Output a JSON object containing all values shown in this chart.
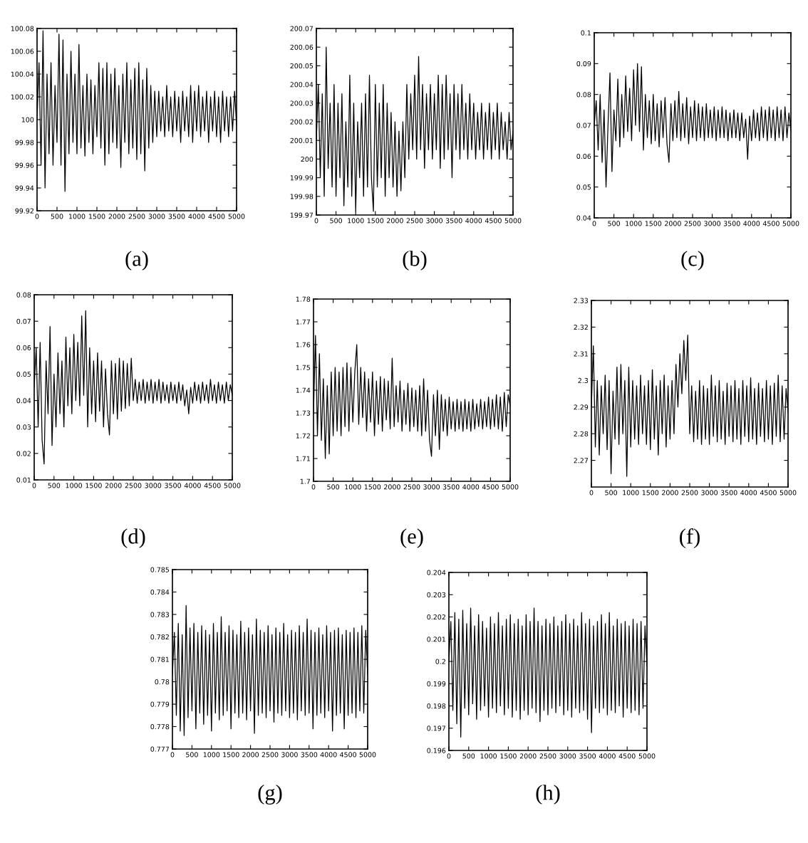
{
  "chart_data": [
    {
      "type": "line",
      "title": "(a)",
      "color": "#000000",
      "line_style": "solid",
      "xlim": [
        0,
        5000
      ],
      "ylim": [
        99.92,
        100.08
      ],
      "xticks": [
        0,
        500,
        1000,
        1500,
        2000,
        2500,
        3000,
        3500,
        4000,
        4500,
        5000
      ],
      "yticks": [
        99.92,
        99.94,
        99.96,
        99.98,
        100,
        100.02,
        100.04,
        100.06,
        100.08
      ],
      "x": [
        0,
        50,
        100,
        150,
        200,
        250,
        300,
        350,
        400,
        450,
        500,
        550,
        600,
        650,
        700,
        750,
        800,
        850,
        900,
        950,
        1000,
        1050,
        1100,
        1150,
        1200,
        1250,
        1300,
        1350,
        1400,
        1450,
        1500,
        1550,
        1600,
        1650,
        1700,
        1750,
        1800,
        1850,
        1900,
        1950,
        2000,
        2050,
        2100,
        2150,
        2200,
        2250,
        2300,
        2350,
        2400,
        2450,
        2500,
        2550,
        2600,
        2650,
        2700,
        2750,
        2800,
        2850,
        2900,
        2950,
        3000,
        3050,
        3100,
        3150,
        3200,
        3250,
        3300,
        3350,
        3400,
        3450,
        3500,
        3550,
        3600,
        3650,
        3700,
        3750,
        3800,
        3850,
        3900,
        3950,
        4000,
        4050,
        4100,
        4150,
        4200,
        4250,
        4300,
        4350,
        4400,
        4450,
        4500,
        4550,
        4600,
        4650,
        4700,
        4750,
        4800,
        4850,
        4900,
        4950,
        5000
      ],
      "values": [
        100.0,
        100.05,
        99.96,
        100.078,
        99.94,
        100.04,
        99.97,
        100.05,
        99.96,
        100.03,
        99.98,
        100.075,
        99.96,
        100.07,
        99.937,
        100.04,
        99.97,
        100.06,
        99.98,
        100.04,
        99.97,
        100.066,
        99.975,
        100.03,
        99.968,
        100.04,
        99.98,
        100.035,
        99.97,
        100.03,
        99.985,
        100.05,
        99.975,
        100.045,
        99.96,
        100.05,
        99.97,
        100.04,
        99.98,
        100.045,
        99.975,
        100.03,
        99.958,
        100.04,
        99.98,
        100.05,
        99.97,
        100.035,
        99.975,
        100.045,
        99.965,
        100.05,
        99.97,
        100.035,
        99.955,
        100.045,
        99.975,
        100.03,
        99.98,
        100.025,
        99.985,
        100.025,
        99.99,
        100.02,
        99.985,
        100.03,
        99.99,
        100.02,
        99.985,
        100.025,
        99.99,
        100.02,
        99.98,
        100.025,
        99.99,
        100.02,
        99.985,
        100.03,
        99.98,
        100.025,
        99.99,
        100.03,
        99.985,
        100.02,
        99.99,
        100.025,
        99.98,
        100.02,
        99.99,
        100.025,
        99.985,
        100.02,
        99.98,
        100.025,
        99.99,
        100.02,
        99.985,
        100.02,
        99.99,
        100.025,
        99.995
      ]
    },
    {
      "type": "line",
      "title": "(b)",
      "color": "#000000",
      "line_style": "solid",
      "xlim": [
        0,
        5000
      ],
      "ylim": [
        199.97,
        200.07
      ],
      "xticks": [
        0,
        500,
        1000,
        1500,
        2000,
        2500,
        3000,
        3500,
        4000,
        4500,
        5000
      ],
      "yticks": [
        199.97,
        199.98,
        199.99,
        200,
        200.01,
        200.02,
        200.03,
        200.04,
        200.05,
        200.06,
        200.07
      ],
      "x": [
        0,
        50,
        100,
        150,
        200,
        250,
        300,
        350,
        400,
        450,
        500,
        550,
        600,
        650,
        700,
        750,
        800,
        850,
        900,
        950,
        1000,
        1050,
        1100,
        1150,
        1200,
        1250,
        1300,
        1350,
        1400,
        1450,
        1500,
        1550,
        1600,
        1650,
        1700,
        1750,
        1800,
        1850,
        1900,
        1950,
        2000,
        2050,
        2100,
        2150,
        2200,
        2250,
        2300,
        2350,
        2400,
        2450,
        2500,
        2550,
        2600,
        2650,
        2700,
        2750,
        2800,
        2850,
        2900,
        2950,
        3000,
        3050,
        3100,
        3150,
        3200,
        3250,
        3300,
        3350,
        3400,
        3450,
        3500,
        3550,
        3600,
        3650,
        3700,
        3750,
        3800,
        3850,
        3900,
        3950,
        4000,
        4050,
        4100,
        4150,
        4200,
        4250,
        4300,
        4350,
        4400,
        4450,
        4500,
        4550,
        4600,
        4650,
        4700,
        4750,
        4800,
        4850,
        4900,
        4950,
        5000
      ],
      "values": [
        200.01,
        200.04,
        199.99,
        200.035,
        199.98,
        200.06,
        199.995,
        200.03,
        199.985,
        200.04,
        199.98,
        200.03,
        199.99,
        200.035,
        199.975,
        200.02,
        199.985,
        200.045,
        199.98,
        200.03,
        199.972,
        200.02,
        199.99,
        200.03,
        199.98,
        200.035,
        199.985,
        200.045,
        199.99,
        199.972,
        200.04,
        199.985,
        200.03,
        199.99,
        200.04,
        199.98,
        200.03,
        199.99,
        200.025,
        199.985,
        200.02,
        199.98,
        200.015,
        199.983,
        200.02,
        199.99,
        200.04,
        200.0,
        200.035,
        200.005,
        200.045,
        200.0,
        200.055,
        200.005,
        200.04,
        199.995,
        200.035,
        200.005,
        200.04,
        200.0,
        200.035,
        200.005,
        200.045,
        199.995,
        200.04,
        200.0,
        200.045,
        200.005,
        200.035,
        199.99,
        200.04,
        200.005,
        200.035,
        200.0,
        200.04,
        200.005,
        200.03,
        200.0,
        200.035,
        200.005,
        200.03,
        200.0,
        200.025,
        200.005,
        200.03,
        200.0,
        200.025,
        200.005,
        200.03,
        200.0,
        200.025,
        200.005,
        200.03,
        200.0,
        200.025,
        200.005,
        200.02,
        200.0,
        200.025,
        200.005,
        200.015
      ]
    },
    {
      "type": "line",
      "title": "(c)",
      "color": "#000000",
      "line_style": "solid",
      "xlim": [
        0,
        5000
      ],
      "ylim": [
        0.04,
        0.1
      ],
      "xticks": [
        0,
        500,
        1000,
        1500,
        2000,
        2500,
        3000,
        3500,
        4000,
        4500,
        5000
      ],
      "yticks": [
        0.04,
        0.05,
        0.06,
        0.07,
        0.08,
        0.09,
        0.1
      ],
      "x": [
        0,
        50,
        100,
        150,
        200,
        250,
        300,
        350,
        400,
        450,
        500,
        550,
        600,
        650,
        700,
        750,
        800,
        850,
        900,
        950,
        1000,
        1050,
        1100,
        1150,
        1200,
        1250,
        1300,
        1350,
        1400,
        1450,
        1500,
        1550,
        1600,
        1650,
        1700,
        1750,
        1800,
        1850,
        1900,
        1950,
        2000,
        2050,
        2100,
        2150,
        2200,
        2250,
        2300,
        2350,
        2400,
        2450,
        2500,
        2550,
        2600,
        2650,
        2700,
        2750,
        2800,
        2850,
        2900,
        2950,
        3000,
        3050,
        3100,
        3150,
        3200,
        3250,
        3300,
        3350,
        3400,
        3450,
        3500,
        3550,
        3600,
        3650,
        3700,
        3750,
        3800,
        3850,
        3900,
        3950,
        4000,
        4050,
        4100,
        4150,
        4200,
        4250,
        4300,
        4350,
        4400,
        4450,
        4500,
        4550,
        4600,
        4650,
        4700,
        4750,
        4800,
        4850,
        4900,
        4950,
        5000
      ],
      "values": [
        0.07,
        0.078,
        0.062,
        0.08,
        0.058,
        0.075,
        0.05,
        0.07,
        0.087,
        0.055,
        0.075,
        0.065,
        0.085,
        0.063,
        0.08,
        0.066,
        0.086,
        0.068,
        0.082,
        0.065,
        0.088,
        0.07,
        0.09,
        0.068,
        0.089,
        0.062,
        0.08,
        0.066,
        0.078,
        0.064,
        0.08,
        0.065,
        0.077,
        0.063,
        0.078,
        0.066,
        0.079,
        0.064,
        0.058,
        0.077,
        0.065,
        0.078,
        0.066,
        0.081,
        0.065,
        0.077,
        0.066,
        0.079,
        0.064,
        0.076,
        0.066,
        0.078,
        0.065,
        0.077,
        0.066,
        0.076,
        0.065,
        0.077,
        0.066,
        0.075,
        0.066,
        0.076,
        0.065,
        0.075,
        0.066,
        0.076,
        0.066,
        0.075,
        0.065,
        0.074,
        0.066,
        0.075,
        0.066,
        0.074,
        0.065,
        0.074,
        0.066,
        0.072,
        0.059,
        0.073,
        0.065,
        0.075,
        0.066,
        0.074,
        0.065,
        0.076,
        0.066,
        0.075,
        0.065,
        0.076,
        0.066,
        0.075,
        0.065,
        0.076,
        0.066,
        0.075,
        0.065,
        0.076,
        0.066,
        0.074,
        0.068
      ]
    },
    {
      "type": "line",
      "title": "(d)",
      "color": "#000000",
      "line_style": "solid",
      "xlim": [
        0,
        5000
      ],
      "ylim": [
        0.01,
        0.08
      ],
      "xticks": [
        0,
        500,
        1000,
        1500,
        2000,
        2500,
        3000,
        3500,
        4000,
        4500,
        5000
      ],
      "yticks": [
        0.01,
        0.02,
        0.03,
        0.04,
        0.05,
        0.06,
        0.07,
        0.08
      ],
      "x": [
        0,
        50,
        100,
        150,
        200,
        250,
        300,
        350,
        400,
        450,
        500,
        550,
        600,
        650,
        700,
        750,
        800,
        850,
        900,
        950,
        1000,
        1050,
        1100,
        1150,
        1200,
        1250,
        1300,
        1350,
        1400,
        1450,
        1500,
        1550,
        1600,
        1650,
        1700,
        1750,
        1800,
        1850,
        1900,
        1950,
        2000,
        2050,
        2100,
        2150,
        2200,
        2250,
        2300,
        2350,
        2400,
        2450,
        2500,
        2550,
        2600,
        2650,
        2700,
        2750,
        2800,
        2850,
        2900,
        2950,
        3000,
        3050,
        3100,
        3150,
        3200,
        3250,
        3300,
        3350,
        3400,
        3450,
        3500,
        3550,
        3600,
        3650,
        3700,
        3750,
        3800,
        3850,
        3900,
        3950,
        4000,
        4050,
        4100,
        4150,
        4200,
        4250,
        4300,
        4350,
        4400,
        4450,
        4500,
        4550,
        4600,
        4650,
        4700,
        4750,
        4800,
        4850,
        4900,
        4950,
        5000
      ],
      "values": [
        0.045,
        0.06,
        0.03,
        0.062,
        0.025,
        0.016,
        0.055,
        0.035,
        0.068,
        0.023,
        0.05,
        0.03,
        0.058,
        0.035,
        0.055,
        0.03,
        0.064,
        0.038,
        0.06,
        0.035,
        0.065,
        0.04,
        0.062,
        0.038,
        0.072,
        0.042,
        0.074,
        0.03,
        0.06,
        0.035,
        0.055,
        0.032,
        0.058,
        0.036,
        0.055,
        0.03,
        0.052,
        0.035,
        0.027,
        0.055,
        0.035,
        0.054,
        0.033,
        0.056,
        0.036,
        0.055,
        0.037,
        0.054,
        0.038,
        0.056,
        0.04,
        0.048,
        0.039,
        0.047,
        0.04,
        0.048,
        0.039,
        0.047,
        0.04,
        0.048,
        0.039,
        0.047,
        0.04,
        0.048,
        0.039,
        0.047,
        0.04,
        0.046,
        0.039,
        0.047,
        0.04,
        0.046,
        0.039,
        0.047,
        0.04,
        0.046,
        0.038,
        0.044,
        0.035,
        0.045,
        0.039,
        0.047,
        0.04,
        0.046,
        0.039,
        0.047,
        0.04,
        0.046,
        0.039,
        0.048,
        0.04,
        0.046,
        0.039,
        0.047,
        0.04,
        0.046,
        0.039,
        0.047,
        0.04,
        0.046,
        0.042
      ]
    },
    {
      "type": "line",
      "title": "(e)",
      "color": "#000000",
      "line_style": "solid",
      "xlim": [
        0,
        5000
      ],
      "ylim": [
        1.7,
        1.78
      ],
      "xticks": [
        0,
        500,
        1000,
        1500,
        2000,
        2500,
        3000,
        3500,
        4000,
        4500,
        5000
      ],
      "yticks": [
        1.7,
        1.71,
        1.72,
        1.73,
        1.74,
        1.75,
        1.76,
        1.77,
        1.78
      ],
      "x": [
        0,
        50,
        100,
        150,
        200,
        250,
        300,
        350,
        400,
        450,
        500,
        550,
        600,
        650,
        700,
        750,
        800,
        850,
        900,
        950,
        1000,
        1050,
        1100,
        1150,
        1200,
        1250,
        1300,
        1350,
        1400,
        1450,
        1500,
        1550,
        1600,
        1650,
        1700,
        1750,
        1800,
        1850,
        1900,
        1950,
        2000,
        2050,
        2100,
        2150,
        2200,
        2250,
        2300,
        2350,
        2400,
        2450,
        2500,
        2550,
        2600,
        2650,
        2700,
        2750,
        2800,
        2850,
        2900,
        2950,
        3000,
        3050,
        3100,
        3150,
        3200,
        3250,
        3300,
        3350,
        3400,
        3450,
        3500,
        3550,
        3600,
        3650,
        3700,
        3750,
        3800,
        3850,
        3900,
        3950,
        4000,
        4050,
        4100,
        4150,
        4200,
        4250,
        4300,
        4350,
        4400,
        4450,
        4500,
        4550,
        4600,
        4650,
        4700,
        4750,
        4800,
        4850,
        4900,
        4950,
        5000
      ],
      "values": [
        1.73,
        1.764,
        1.72,
        1.756,
        1.718,
        1.745,
        1.71,
        1.742,
        1.712,
        1.748,
        1.72,
        1.75,
        1.722,
        1.748,
        1.72,
        1.75,
        1.724,
        1.752,
        1.722,
        1.75,
        1.726,
        1.748,
        1.76,
        1.725,
        1.75,
        1.728,
        1.748,
        1.722,
        1.745,
        1.726,
        1.748,
        1.72,
        1.744,
        1.725,
        1.746,
        1.722,
        1.745,
        1.727,
        1.744,
        1.723,
        1.754,
        1.724,
        1.742,
        1.726,
        1.744,
        1.722,
        1.74,
        1.725,
        1.743,
        1.722,
        1.741,
        1.724,
        1.74,
        1.722,
        1.742,
        1.72,
        1.745,
        1.722,
        1.74,
        1.718,
        1.711,
        1.738,
        1.72,
        1.74,
        1.714,
        1.738,
        1.722,
        1.736,
        1.72,
        1.737,
        1.723,
        1.735,
        1.722,
        1.736,
        1.723,
        1.735,
        1.722,
        1.736,
        1.723,
        1.735,
        1.722,
        1.736,
        1.723,
        1.734,
        1.724,
        1.736,
        1.723,
        1.735,
        1.724,
        1.737,
        1.723,
        1.736,
        1.724,
        1.738,
        1.723,
        1.737,
        1.722,
        1.739,
        1.724,
        1.738,
        1.733
      ]
    },
    {
      "type": "line",
      "title": "(f)",
      "color": "#000000",
      "line_style": "solid",
      "xlim": [
        0,
        5000
      ],
      "ylim": [
        2.26,
        2.33
      ],
      "xticks": [
        0,
        500,
        1000,
        1500,
        2000,
        2500,
        3000,
        3500,
        4000,
        4500,
        5000
      ],
      "yticks": [
        2.27,
        2.28,
        2.29,
        2.3,
        2.31,
        2.32,
        2.33
      ],
      "x": [
        0,
        50,
        100,
        150,
        200,
        250,
        300,
        350,
        400,
        450,
        500,
        550,
        600,
        650,
        700,
        750,
        800,
        850,
        900,
        950,
        1000,
        1050,
        1100,
        1150,
        1200,
        1250,
        1300,
        1350,
        1400,
        1450,
        1500,
        1550,
        1600,
        1650,
        1700,
        1750,
        1800,
        1850,
        1900,
        1950,
        2000,
        2050,
        2100,
        2150,
        2200,
        2250,
        2300,
        2350,
        2400,
        2450,
        2500,
        2550,
        2600,
        2650,
        2700,
        2750,
        2800,
        2850,
        2900,
        2950,
        3000,
        3050,
        3100,
        3150,
        3200,
        3250,
        3300,
        3350,
        3400,
        3450,
        3500,
        3550,
        3600,
        3650,
        3700,
        3750,
        3800,
        3850,
        3900,
        3950,
        4000,
        4050,
        4100,
        4150,
        4200,
        4250,
        4300,
        4350,
        4400,
        4450,
        4500,
        4550,
        4600,
        4650,
        4700,
        4750,
        4800,
        4850,
        4900,
        4950,
        5000
      ],
      "values": [
        2.29,
        2.313,
        2.275,
        2.3,
        2.272,
        2.298,
        2.28,
        2.302,
        2.274,
        2.3,
        2.265,
        2.296,
        2.278,
        2.305,
        2.276,
        2.306,
        2.28,
        2.3,
        2.264,
        2.305,
        2.275,
        2.3,
        2.278,
        2.298,
        2.276,
        2.302,
        2.28,
        2.298,
        2.276,
        2.3,
        2.274,
        2.304,
        2.278,
        2.298,
        2.272,
        2.3,
        2.28,
        2.302,
        2.275,
        2.298,
        2.278,
        2.3,
        2.28,
        2.306,
        2.29,
        2.31,
        2.295,
        2.315,
        2.3,
        2.317,
        2.28,
        2.298,
        2.277,
        2.296,
        2.278,
        2.3,
        2.276,
        2.298,
        2.278,
        2.297,
        2.276,
        2.302,
        2.279,
        2.298,
        2.277,
        2.3,
        2.278,
        2.296,
        2.276,
        2.299,
        2.279,
        2.298,
        2.277,
        2.3,
        2.278,
        2.297,
        2.276,
        2.3,
        2.279,
        2.298,
        2.277,
        2.301,
        2.278,
        2.297,
        2.276,
        2.299,
        2.279,
        2.297,
        2.277,
        2.3,
        2.278,
        2.298,
        2.276,
        2.299,
        2.279,
        2.302,
        2.277,
        2.298,
        2.278,
        2.297,
        2.288
      ]
    },
    {
      "type": "line",
      "title": "(g)",
      "color": "#000000",
      "line_style": "solid",
      "xlim": [
        0,
        5000
      ],
      "ylim": [
        0.777,
        0.785
      ],
      "xticks": [
        0,
        500,
        1000,
        1500,
        2000,
        2500,
        3000,
        3500,
        4000,
        4500,
        5000
      ],
      "yticks": [
        0.777,
        0.778,
        0.779,
        0.78,
        0.781,
        0.782,
        0.783,
        0.784,
        0.785
      ],
      "x": [
        0,
        50,
        100,
        150,
        200,
        250,
        300,
        350,
        400,
        450,
        500,
        550,
        600,
        650,
        700,
        750,
        800,
        850,
        900,
        950,
        1000,
        1050,
        1100,
        1150,
        1200,
        1250,
        1300,
        1350,
        1400,
        1450,
        1500,
        1550,
        1600,
        1650,
        1700,
        1750,
        1800,
        1850,
        1900,
        1950,
        2000,
        2050,
        2100,
        2150,
        2200,
        2250,
        2300,
        2350,
        2400,
        2450,
        2500,
        2550,
        2600,
        2650,
        2700,
        2750,
        2800,
        2850,
        2900,
        2950,
        3000,
        3050,
        3100,
        3150,
        3200,
        3250,
        3300,
        3350,
        3400,
        3450,
        3500,
        3550,
        3600,
        3650,
        3700,
        3750,
        3800,
        3850,
        3900,
        3950,
        4000,
        4050,
        4100,
        4150,
        4200,
        4250,
        4300,
        4350,
        4400,
        4450,
        4500,
        4550,
        4600,
        4650,
        4700,
        4750,
        4800,
        4850,
        4900,
        4950,
        5000
      ],
      "values": [
        0.7803,
        0.7822,
        0.7785,
        0.7826,
        0.7778,
        0.7821,
        0.7776,
        0.7834,
        0.7784,
        0.7824,
        0.7787,
        0.7826,
        0.7779,
        0.7822,
        0.7786,
        0.7825,
        0.7781,
        0.7823,
        0.7785,
        0.7821,
        0.7778,
        0.7826,
        0.7786,
        0.7822,
        0.7783,
        0.7829,
        0.7785,
        0.7822,
        0.7787,
        0.7825,
        0.7779,
        0.7823,
        0.7786,
        0.7821,
        0.7784,
        0.7827,
        0.7786,
        0.7822,
        0.7783,
        0.7824,
        0.7787,
        0.7821,
        0.7777,
        0.7828,
        0.7785,
        0.7823,
        0.7786,
        0.7822,
        0.7784,
        0.7825,
        0.7787,
        0.7821,
        0.7782,
        0.7824,
        0.7786,
        0.7822,
        0.7785,
        0.7826,
        0.7787,
        0.7821,
        0.7784,
        0.7823,
        0.7786,
        0.7822,
        0.7783,
        0.7825,
        0.7787,
        0.7822,
        0.7785,
        0.7828,
        0.7786,
        0.7823,
        0.7779,
        0.7822,
        0.7785,
        0.7824,
        0.7786,
        0.7821,
        0.7784,
        0.7825,
        0.7787,
        0.7822,
        0.7778,
        0.7823,
        0.7785,
        0.7824,
        0.7786,
        0.7821,
        0.7779,
        0.7823,
        0.7785,
        0.7822,
        0.7786,
        0.7824,
        0.7784,
        0.7822,
        0.7787,
        0.7825,
        0.7786,
        0.7823,
        0.7803
      ]
    },
    {
      "type": "line",
      "title": "(h)",
      "color": "#000000",
      "line_style": "solid",
      "xlim": [
        0,
        5000
      ],
      "ylim": [
        0.196,
        0.204
      ],
      "xticks": [
        0,
        500,
        1000,
        1500,
        2000,
        2500,
        3000,
        3500,
        4000,
        4500,
        5000
      ],
      "yticks": [
        0.196,
        0.197,
        0.198,
        0.199,
        0.2,
        0.201,
        0.202,
        0.203,
        0.204
      ],
      "x": [
        0,
        50,
        100,
        150,
        200,
        250,
        300,
        350,
        400,
        450,
        500,
        550,
        600,
        650,
        700,
        750,
        800,
        850,
        900,
        950,
        1000,
        1050,
        1100,
        1150,
        1200,
        1250,
        1300,
        1350,
        1400,
        1450,
        1500,
        1550,
        1600,
        1650,
        1700,
        1750,
        1800,
        1850,
        1900,
        1950,
        2000,
        2050,
        2100,
        2150,
        2200,
        2250,
        2300,
        2350,
        2400,
        2450,
        2500,
        2550,
        2600,
        2650,
        2700,
        2750,
        2800,
        2850,
        2900,
        2950,
        3000,
        3050,
        3100,
        3150,
        3200,
        3250,
        3300,
        3350,
        3400,
        3450,
        3500,
        3550,
        3600,
        3650,
        3700,
        3750,
        3800,
        3850,
        3900,
        3950,
        4000,
        4050,
        4100,
        4150,
        4200,
        4250,
        4300,
        4350,
        4400,
        4450,
        4500,
        4550,
        4600,
        4650,
        4700,
        4750,
        4800,
        4850,
        4900,
        4950,
        5000
      ],
      "values": [
        0.2,
        0.2018,
        0.1978,
        0.2022,
        0.1972,
        0.2019,
        0.1966,
        0.2023,
        0.1979,
        0.2017,
        0.1976,
        0.2024,
        0.1981,
        0.2016,
        0.1974,
        0.2021,
        0.1978,
        0.2018,
        0.198,
        0.2015,
        0.1975,
        0.202,
        0.1979,
        0.2017,
        0.1977,
        0.2022,
        0.198,
        0.2016,
        0.1976,
        0.2019,
        0.1979,
        0.2021,
        0.1975,
        0.2017,
        0.1978,
        0.2019,
        0.1974,
        0.2016,
        0.1978,
        0.2021,
        0.1976,
        0.2018,
        0.1979,
        0.2024,
        0.1977,
        0.2018,
        0.1973,
        0.2016,
        0.1978,
        0.2019,
        0.1976,
        0.2017,
        0.1979,
        0.202,
        0.1977,
        0.2016,
        0.198,
        0.2018,
        0.1976,
        0.2021,
        0.1978,
        0.2017,
        0.1975,
        0.2019,
        0.1979,
        0.2016,
        0.1977,
        0.2022,
        0.1978,
        0.2017,
        0.1974,
        0.2019,
        0.1968,
        0.2016,
        0.1979,
        0.2018,
        0.1977,
        0.2021,
        0.1979,
        0.2017,
        0.1976,
        0.2022,
        0.1978,
        0.2016,
        0.1977,
        0.2019,
        0.198,
        0.2017,
        0.1975,
        0.2018,
        0.1979,
        0.2016,
        0.1977,
        0.2019,
        0.1978,
        0.2017,
        0.1976,
        0.2018,
        0.1979,
        0.2016,
        0.1998
      ]
    }
  ]
}
